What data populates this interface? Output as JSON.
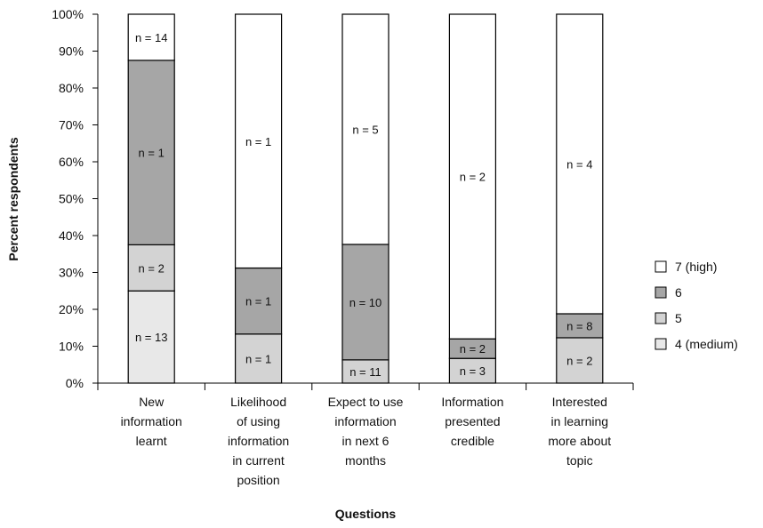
{
  "chart_data": {
    "type": "bar",
    "stacked": true,
    "xlabel": "Questions",
    "ylabel": "Percent respondents",
    "ylim": [
      0,
      100
    ],
    "yticks": [
      "0%",
      "10%",
      "20%",
      "30%",
      "40%",
      "50%",
      "60%",
      "70%",
      "80%",
      "90%",
      "100%"
    ],
    "categories": [
      [
        "New",
        "information",
        "learnt"
      ],
      [
        "Likelihood",
        "of using",
        "information",
        "in current",
        "position"
      ],
      [
        "Expect to use",
        "information",
        "in next 6",
        "months"
      ],
      [
        "Information",
        "presented",
        "credible"
      ],
      [
        "Interested",
        "in learning",
        "more about",
        "topic"
      ]
    ],
    "series": [
      {
        "name": "4 (medium)",
        "color": "#e8e8e8",
        "values": [
          25,
          0,
          0,
          0,
          0
        ],
        "labels": [
          "n = 13",
          "",
          "",
          "",
          ""
        ]
      },
      {
        "name": "5",
        "color": "#d3d3d3",
        "values": [
          12.5,
          13.3,
          6.3,
          6.7,
          12.3
        ],
        "labels": [
          "n = 2",
          "n = 1",
          "n = 11",
          "n = 3",
          "n = 2"
        ]
      },
      {
        "name": "6",
        "color": "#a6a6a6",
        "values": [
          50,
          17.9,
          31.3,
          5.3,
          6.5
        ],
        "labels": [
          "n = 1",
          "n = 1",
          "n = 10",
          "n = 2",
          "n = 8"
        ]
      },
      {
        "name": "7 (high)",
        "color": "#ffffff",
        "values": [
          12.5,
          68.8,
          62.4,
          88.0,
          81.2
        ],
        "labels": [
          "n = 14",
          "n = 1",
          "n = 5",
          "n = 2",
          "n = 4"
        ]
      }
    ],
    "legend_order": [
      "7 (high)",
      "6",
      "5",
      "4 (medium)"
    ],
    "legend_position": "right",
    "grid": false
  }
}
